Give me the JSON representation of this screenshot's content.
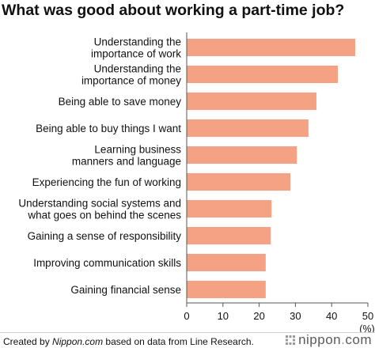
{
  "chart_data": {
    "type": "bar",
    "orientation": "horizontal",
    "title": "What was good about working a part-time job?",
    "categories": [
      [
        "Understanding the",
        "importance of work"
      ],
      [
        "Understanding the",
        "importance of money"
      ],
      [
        "Being able to save money"
      ],
      [
        "Being able to buy things I want"
      ],
      [
        "Learning business",
        "manners and language"
      ],
      [
        "Experiencing the fun of working"
      ],
      [
        "Understanding social systems and",
        "what goes on behind the scenes"
      ],
      [
        "Gaining a sense of responsibility"
      ],
      [
        "Improving communication skills"
      ],
      [
        "Gaining financial sense"
      ]
    ],
    "values": [
      46.5,
      41.7,
      35.8,
      33.6,
      30.4,
      28.6,
      23.4,
      23.2,
      21.8,
      21.8
    ],
    "xlim": [
      0,
      50
    ],
    "xticks": [
      "0",
      "10",
      "20",
      "30",
      "40",
      "50"
    ],
    "xunit": "(%)",
    "bar_color": "#f4a283",
    "grid": false,
    "legend": "none"
  },
  "footer": {
    "credit_prefix": "Created by ",
    "credit_site": "Nippon.com",
    "credit_suffix": " based on data from Line Research.",
    "brand_name": "nippon",
    "brand_dot": ".",
    "brand_tld": "com"
  }
}
